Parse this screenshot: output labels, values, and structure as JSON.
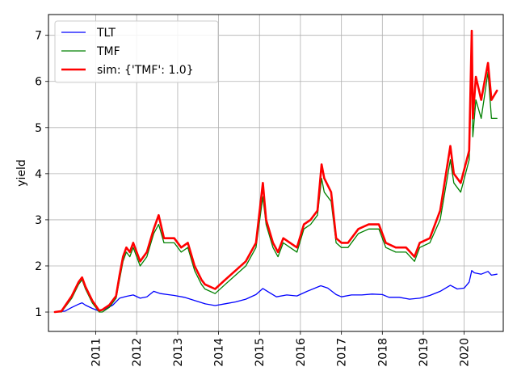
{
  "chart_data": {
    "type": "line",
    "title": "",
    "xlabel": "",
    "ylabel": "yield",
    "grid": true,
    "legend_position": "top-left",
    "x_ticks": [
      "2011",
      "2012",
      "2013",
      "2014",
      "2015",
      "2016",
      "2017",
      "2018",
      "2019",
      "2020"
    ],
    "y_ticks": [
      "1",
      "2",
      "3",
      "4",
      "5",
      "6",
      "7"
    ],
    "xlim": [
      "2009-11-05",
      "2020-12-15"
    ],
    "ylim": [
      0.58,
      7.45
    ],
    "series": [
      {
        "name": "TLT",
        "color": "#0000ff",
        "linewidth": 1,
        "points": [
          [
            "2010-01-01",
            1.0
          ],
          [
            "2010-04-01",
            1.02
          ],
          [
            "2010-06-01",
            1.1
          ],
          [
            "2010-08-01",
            1.17
          ],
          [
            "2010-09-01",
            1.2
          ],
          [
            "2010-10-01",
            1.15
          ],
          [
            "2010-12-01",
            1.08
          ],
          [
            "2011-02-01",
            1.02
          ],
          [
            "2011-04-01",
            1.07
          ],
          [
            "2011-06-01",
            1.15
          ],
          [
            "2011-08-01",
            1.3
          ],
          [
            "2011-10-01",
            1.34
          ],
          [
            "2011-12-01",
            1.37
          ],
          [
            "2012-02-01",
            1.3
          ],
          [
            "2012-04-01",
            1.33
          ],
          [
            "2012-06-01",
            1.45
          ],
          [
            "2012-08-01",
            1.4
          ],
          [
            "2012-10-01",
            1.38
          ],
          [
            "2012-12-01",
            1.36
          ],
          [
            "2013-03-01",
            1.32
          ],
          [
            "2013-06-01",
            1.25
          ],
          [
            "2013-09-01",
            1.18
          ],
          [
            "2013-12-01",
            1.14
          ],
          [
            "2014-03-01",
            1.18
          ],
          [
            "2014-06-01",
            1.22
          ],
          [
            "2014-09-01",
            1.28
          ],
          [
            "2014-12-01",
            1.38
          ],
          [
            "2015-01-31",
            1.51
          ],
          [
            "2015-04-01",
            1.42
          ],
          [
            "2015-06-01",
            1.33
          ],
          [
            "2015-09-01",
            1.37
          ],
          [
            "2015-12-01",
            1.35
          ],
          [
            "2016-03-01",
            1.45
          ],
          [
            "2016-07-01",
            1.57
          ],
          [
            "2016-09-01",
            1.52
          ],
          [
            "2016-11-15",
            1.38
          ],
          [
            "2017-01-01",
            1.33
          ],
          [
            "2017-04-01",
            1.37
          ],
          [
            "2017-07-01",
            1.37
          ],
          [
            "2017-10-01",
            1.39
          ],
          [
            "2018-01-01",
            1.38
          ],
          [
            "2018-03-01",
            1.32
          ],
          [
            "2018-06-01",
            1.32
          ],
          [
            "2018-09-01",
            1.28
          ],
          [
            "2018-12-01",
            1.3
          ],
          [
            "2019-03-01",
            1.36
          ],
          [
            "2019-06-01",
            1.45
          ],
          [
            "2019-08-31",
            1.58
          ],
          [
            "2019-11-01",
            1.5
          ],
          [
            "2020-01-01",
            1.52
          ],
          [
            "2020-02-15",
            1.65
          ],
          [
            "2020-03-09",
            1.9
          ],
          [
            "2020-04-01",
            1.85
          ],
          [
            "2020-06-01",
            1.82
          ],
          [
            "2020-08-01",
            1.88
          ],
          [
            "2020-09-01",
            1.8
          ],
          [
            "2020-10-20",
            1.82
          ]
        ]
      },
      {
        "name": "TMF",
        "color": "#008000",
        "linewidth": 1,
        "points": [
          [
            "2010-01-01",
            1.0
          ],
          [
            "2010-03-01",
            1.0
          ],
          [
            "2010-06-01",
            1.3
          ],
          [
            "2010-08-01",
            1.6
          ],
          [
            "2010-09-01",
            1.7
          ],
          [
            "2010-10-01",
            1.5
          ],
          [
            "2010-12-01",
            1.2
          ],
          [
            "2011-02-01",
            1.0
          ],
          [
            "2011-03-01",
            1.0
          ],
          [
            "2011-05-01",
            1.1
          ],
          [
            "2011-07-01",
            1.3
          ],
          [
            "2011-08-01",
            1.7
          ],
          [
            "2011-09-01",
            2.1
          ],
          [
            "2011-10-01",
            2.3
          ],
          [
            "2011-11-01",
            2.2
          ],
          [
            "2011-12-01",
            2.4
          ],
          [
            "2012-02-01",
            2.0
          ],
          [
            "2012-04-01",
            2.2
          ],
          [
            "2012-06-01",
            2.7
          ],
          [
            "2012-07-15",
            2.9
          ],
          [
            "2012-09-01",
            2.5
          ],
          [
            "2012-10-01",
            2.5
          ],
          [
            "2012-12-01",
            2.5
          ],
          [
            "2013-02-01",
            2.3
          ],
          [
            "2013-04-01",
            2.4
          ],
          [
            "2013-06-01",
            1.9
          ],
          [
            "2013-08-01",
            1.6
          ],
          [
            "2013-09-01",
            1.5
          ],
          [
            "2013-12-01",
            1.4
          ],
          [
            "2014-03-01",
            1.6
          ],
          [
            "2014-06-01",
            1.8
          ],
          [
            "2014-09-01",
            2.0
          ],
          [
            "2014-12-01",
            2.4
          ],
          [
            "2015-01-31",
            3.5
          ],
          [
            "2015-03-01",
            2.9
          ],
          [
            "2015-05-01",
            2.4
          ],
          [
            "2015-06-15",
            2.2
          ],
          [
            "2015-08-01",
            2.5
          ],
          [
            "2015-10-01",
            2.4
          ],
          [
            "2015-12-01",
            2.3
          ],
          [
            "2016-02-01",
            2.8
          ],
          [
            "2016-04-01",
            2.9
          ],
          [
            "2016-06-01",
            3.1
          ],
          [
            "2016-07-08",
            3.9
          ],
          [
            "2016-08-01",
            3.6
          ],
          [
            "2016-10-01",
            3.4
          ],
          [
            "2016-11-15",
            2.5
          ],
          [
            "2017-01-01",
            2.4
          ],
          [
            "2017-03-01",
            2.4
          ],
          [
            "2017-06-01",
            2.7
          ],
          [
            "2017-09-01",
            2.8
          ],
          [
            "2017-12-01",
            2.8
          ],
          [
            "2018-02-01",
            2.4
          ],
          [
            "2018-05-01",
            2.3
          ],
          [
            "2018-08-01",
            2.3
          ],
          [
            "2018-10-15",
            2.1
          ],
          [
            "2018-12-01",
            2.4
          ],
          [
            "2019-03-01",
            2.5
          ],
          [
            "2019-06-01",
            3.0
          ],
          [
            "2019-08-31",
            4.3
          ],
          [
            "2019-10-01",
            3.8
          ],
          [
            "2019-12-01",
            3.6
          ],
          [
            "2020-02-15",
            4.3
          ],
          [
            "2020-03-09",
            6.5
          ],
          [
            "2020-03-18",
            4.8
          ],
          [
            "2020-04-15",
            5.6
          ],
          [
            "2020-06-01",
            5.2
          ],
          [
            "2020-08-01",
            6.2
          ],
          [
            "2020-09-01",
            5.2
          ],
          [
            "2020-10-20",
            5.2
          ]
        ]
      },
      {
        "name": "sim: {'TMF': 1.0}",
        "color": "#ff0000",
        "linewidth": 2,
        "points": [
          [
            "2010-01-01",
            1.0
          ],
          [
            "2010-03-01",
            1.02
          ],
          [
            "2010-06-01",
            1.35
          ],
          [
            "2010-08-01",
            1.65
          ],
          [
            "2010-09-01",
            1.75
          ],
          [
            "2010-10-01",
            1.55
          ],
          [
            "2010-12-01",
            1.25
          ],
          [
            "2011-02-01",
            1.03
          ],
          [
            "2011-03-01",
            1.05
          ],
          [
            "2011-05-01",
            1.15
          ],
          [
            "2011-07-01",
            1.35
          ],
          [
            "2011-08-01",
            1.8
          ],
          [
            "2011-09-01",
            2.2
          ],
          [
            "2011-10-01",
            2.4
          ],
          [
            "2011-11-01",
            2.3
          ],
          [
            "2011-12-01",
            2.5
          ],
          [
            "2012-02-01",
            2.1
          ],
          [
            "2012-04-01",
            2.3
          ],
          [
            "2012-06-01",
            2.8
          ],
          [
            "2012-07-15",
            3.1
          ],
          [
            "2012-09-01",
            2.6
          ],
          [
            "2012-10-01",
            2.6
          ],
          [
            "2012-12-01",
            2.6
          ],
          [
            "2013-02-01",
            2.4
          ],
          [
            "2013-04-01",
            2.5
          ],
          [
            "2013-06-01",
            2.0
          ],
          [
            "2013-08-01",
            1.7
          ],
          [
            "2013-09-01",
            1.6
          ],
          [
            "2013-12-01",
            1.5
          ],
          [
            "2014-03-01",
            1.7
          ],
          [
            "2014-06-01",
            1.9
          ],
          [
            "2014-09-01",
            2.1
          ],
          [
            "2014-12-01",
            2.5
          ],
          [
            "2015-01-31",
            3.8
          ],
          [
            "2015-03-01",
            3.0
          ],
          [
            "2015-05-01",
            2.5
          ],
          [
            "2015-06-15",
            2.3
          ],
          [
            "2015-08-01",
            2.6
          ],
          [
            "2015-10-01",
            2.5
          ],
          [
            "2015-12-01",
            2.4
          ],
          [
            "2016-02-01",
            2.9
          ],
          [
            "2016-04-01",
            3.0
          ],
          [
            "2016-06-01",
            3.2
          ],
          [
            "2016-07-08",
            4.2
          ],
          [
            "2016-08-01",
            3.9
          ],
          [
            "2016-10-01",
            3.6
          ],
          [
            "2016-11-15",
            2.6
          ],
          [
            "2017-01-01",
            2.5
          ],
          [
            "2017-03-01",
            2.5
          ],
          [
            "2017-06-01",
            2.8
          ],
          [
            "2017-09-01",
            2.9
          ],
          [
            "2017-12-01",
            2.9
          ],
          [
            "2018-02-01",
            2.5
          ],
          [
            "2018-05-01",
            2.4
          ],
          [
            "2018-08-01",
            2.4
          ],
          [
            "2018-10-15",
            2.2
          ],
          [
            "2018-12-01",
            2.5
          ],
          [
            "2019-03-01",
            2.6
          ],
          [
            "2019-06-01",
            3.2
          ],
          [
            "2019-08-31",
            4.6
          ],
          [
            "2019-10-01",
            4.0
          ],
          [
            "2019-12-01",
            3.8
          ],
          [
            "2020-02-15",
            4.5
          ],
          [
            "2020-03-09",
            7.1
          ],
          [
            "2020-03-18",
            5.2
          ],
          [
            "2020-04-15",
            6.1
          ],
          [
            "2020-06-01",
            5.6
          ],
          [
            "2020-08-01",
            6.4
          ],
          [
            "2020-09-01",
            5.6
          ],
          [
            "2020-10-20",
            5.8
          ]
        ]
      }
    ]
  }
}
